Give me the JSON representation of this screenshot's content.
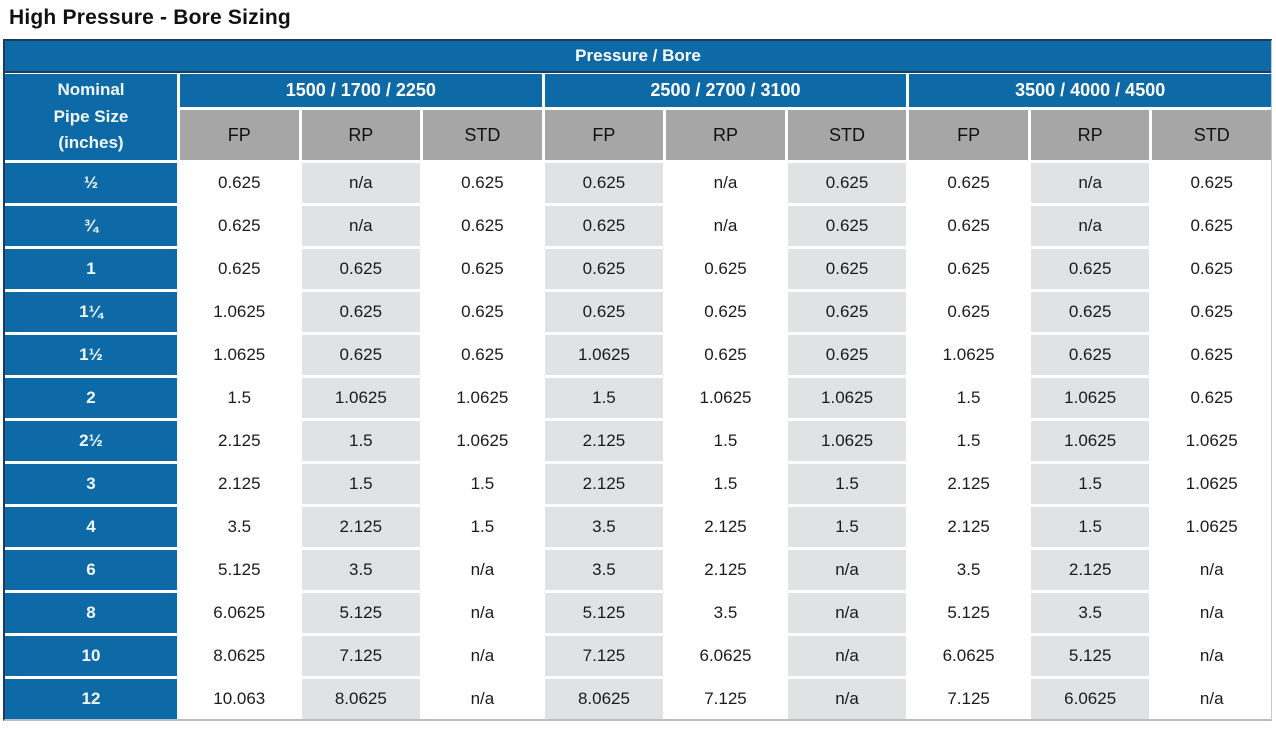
{
  "page_title": "High Pressure - Bore Sizing",
  "colors": {
    "header_blue": "#0d6aa7",
    "dark_outline": "#1b3c60",
    "subheader_gray": "#a6a6a6",
    "shaded_cell_gray": "#e1e2e3",
    "cell_white": "#ffffff",
    "text_dark": "#1b1b1b",
    "text_white": "#ffffff"
  },
  "table": {
    "top_header": "Pressure / Bore",
    "corner": [
      "Nominal",
      "Pipe Size",
      "(inches)"
    ],
    "groups": [
      {
        "label": "1500 / 1700 / 2250",
        "columns": [
          "FP",
          "RP",
          "STD"
        ]
      },
      {
        "label": "2500 / 2700 / 3100",
        "columns": [
          "FP",
          "RP",
          "STD"
        ]
      },
      {
        "label": "3500 / 4000 / 4500",
        "columns": [
          "FP",
          "RP",
          "STD"
        ]
      }
    ],
    "rows": [
      {
        "size": "½",
        "values": [
          "0.625",
          "n/a",
          "0.625",
          "0.625",
          "n/a",
          "0.625",
          "0.625",
          "n/a",
          "0.625"
        ]
      },
      {
        "size": "¾",
        "values": [
          "0.625",
          "n/a",
          "0.625",
          "0.625",
          "n/a",
          "0.625",
          "0.625",
          "n/a",
          "0.625"
        ]
      },
      {
        "size": "1",
        "values": [
          "0.625",
          "0.625",
          "0.625",
          "0.625",
          "0.625",
          "0.625",
          "0.625",
          "0.625",
          "0.625"
        ]
      },
      {
        "size": "1¼",
        "values": [
          "1.0625",
          "0.625",
          "0.625",
          "0.625",
          "0.625",
          "0.625",
          "0.625",
          "0.625",
          "0.625"
        ]
      },
      {
        "size": "1½",
        "values": [
          "1.0625",
          "0.625",
          "0.625",
          "1.0625",
          "0.625",
          "0.625",
          "1.0625",
          "0.625",
          "0.625"
        ]
      },
      {
        "size": "2",
        "values": [
          "1.5",
          "1.0625",
          "1.0625",
          "1.5",
          "1.0625",
          "1.0625",
          "1.5",
          "1.0625",
          "0.625"
        ]
      },
      {
        "size": "2½",
        "values": [
          "2.125",
          "1.5",
          "1.0625",
          "2.125",
          "1.5",
          "1.0625",
          "1.5",
          "1.0625",
          "1.0625"
        ]
      },
      {
        "size": "3",
        "values": [
          "2.125",
          "1.5",
          "1.5",
          "2.125",
          "1.5",
          "1.5",
          "2.125",
          "1.5",
          "1.0625"
        ]
      },
      {
        "size": "4",
        "values": [
          "3.5",
          "2.125",
          "1.5",
          "3.5",
          "2.125",
          "1.5",
          "2.125",
          "1.5",
          "1.0625"
        ]
      },
      {
        "size": "6",
        "values": [
          "5.125",
          "3.5",
          "n/a",
          "3.5",
          "2.125",
          "n/a",
          "3.5",
          "2.125",
          "n/a"
        ]
      },
      {
        "size": "8",
        "values": [
          "6.0625",
          "5.125",
          "n/a",
          "5.125",
          "3.5",
          "n/a",
          "5.125",
          "3.5",
          "n/a"
        ]
      },
      {
        "size": "10",
        "values": [
          "8.0625",
          "7.125",
          "n/a",
          "7.125",
          "6.0625",
          "n/a",
          "6.0625",
          "5.125",
          "n/a"
        ]
      },
      {
        "size": "12",
        "values": [
          "10.063",
          "8.0625",
          "n/a",
          "8.0625",
          "7.125",
          "n/a",
          "7.125",
          "6.0625",
          "n/a"
        ]
      }
    ]
  }
}
